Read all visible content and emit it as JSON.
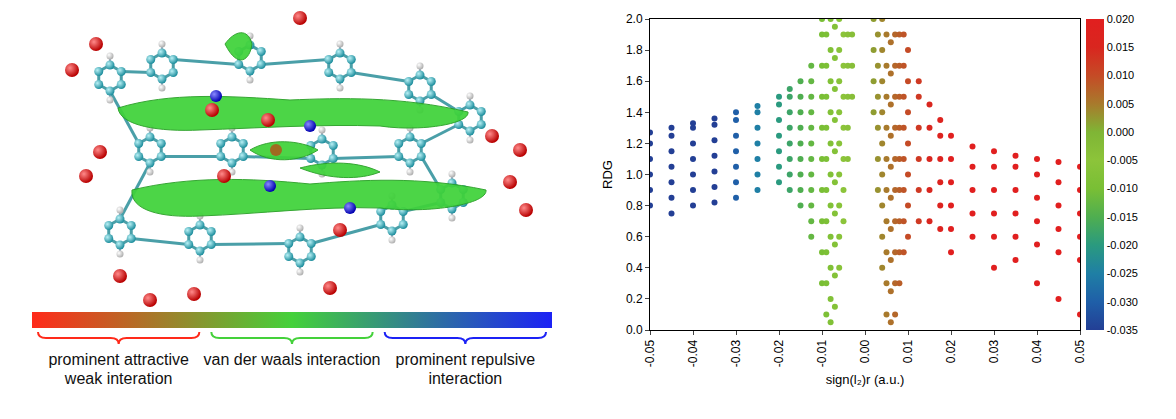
{
  "molecule_panel": {
    "legend": {
      "colors": [
        "#ff2a1a",
        "#44d13a",
        "#1c22f5"
      ],
      "labels": [
        "prominent attractive weak interation",
        "van der waals interaction",
        "prominent repulsive interaction"
      ]
    }
  },
  "chart_data": {
    "type": "scatter",
    "x_label": "sign(l₂)r (a.u.)",
    "y_label": "RDG",
    "xlim": [
      -0.05,
      0.05
    ],
    "xticks": [
      -0.05,
      -0.04,
      -0.03,
      -0.02,
      -0.01,
      {
        "value": 0,
        "label": "0.00"
      },
      0.01,
      0.02,
      0.03,
      0.04,
      0.05
    ],
    "ylim": [
      0,
      2
    ],
    "yticks": [
      {
        "value": 0,
        "label": "0.0"
      },
      0.2,
      0.4,
      0.6,
      0.8,
      {
        "value": 1,
        "label": "1.0"
      },
      1.2,
      1.4,
      1.6,
      1.8,
      {
        "value": 2,
        "label": "2.0"
      }
    ],
    "grid": false,
    "colorbar": {
      "range": [
        -0.035,
        0.02
      ],
      "ticks": [
        {
          "value": 0.02,
          "label": "0.020"
        },
        0.015,
        {
          "value": 0.01,
          "label": "0.010"
        },
        0.005,
        {
          "value": 0,
          "label": "0.000"
        },
        -0.005,
        {
          "value": -0.01,
          "label": "-0.010"
        },
        -0.015,
        {
          "value": -0.02,
          "label": "-0.020"
        },
        -0.025,
        {
          "value": -0.03,
          "label": "-0.030"
        },
        -0.035
      ],
      "colors": [
        "#233f95",
        "#1f5fa8",
        "#1f7fa5",
        "#2a9a7f",
        "#4fae50",
        "#79bf35",
        "#8cc43a",
        "#7fb535",
        "#a87a2c",
        "#c54b26",
        "#d9261f",
        "#e11f1f"
      ]
    },
    "x": [
      -0.05,
      -0.05,
      -0.05,
      -0.05,
      -0.05,
      -0.05,
      -0.045,
      -0.045,
      -0.045,
      -0.045,
      -0.045,
      -0.045,
      -0.045,
      -0.04,
      -0.04,
      -0.04,
      -0.04,
      -0.04,
      -0.04,
      -0.04,
      -0.035,
      -0.035,
      -0.035,
      -0.035,
      -0.035,
      -0.035,
      -0.035,
      -0.03,
      -0.03,
      -0.03,
      -0.03,
      -0.03,
      -0.03,
      -0.03,
      -0.025,
      -0.025,
      -0.025,
      -0.025,
      -0.025,
      -0.025,
      -0.025,
      -0.02,
      -0.02,
      -0.02,
      -0.02,
      -0.02,
      -0.02,
      -0.02,
      -0.0175,
      -0.0175,
      -0.0175,
      -0.0175,
      -0.0175,
      -0.0175,
      -0.0175,
      -0.0175,
      -0.015,
      -0.015,
      -0.015,
      -0.015,
      -0.015,
      -0.015,
      -0.015,
      -0.015,
      -0.015,
      -0.0125,
      -0.0125,
      -0.0125,
      -0.0125,
      -0.0125,
      -0.0125,
      -0.0125,
      -0.0125,
      -0.0125,
      -0.0125,
      -0.0125,
      -0.0125,
      -0.01,
      -0.01,
      -0.01,
      -0.01,
      -0.01,
      -0.01,
      -0.01,
      -0.01,
      -0.01,
      -0.01,
      -0.009,
      -0.009,
      -0.009,
      -0.009,
      -0.009,
      -0.009,
      -0.009,
      -0.009,
      -0.009,
      -0.009,
      -0.008,
      -0.008,
      -0.008,
      -0.008,
      -0.008,
      -0.008,
      -0.008,
      -0.008,
      -0.008,
      -0.008,
      -0.008,
      -0.007,
      -0.007,
      -0.007,
      -0.007,
      -0.007,
      -0.007,
      -0.007,
      -0.007,
      -0.007,
      -0.007,
      -0.006,
      -0.006,
      -0.006,
      -0.006,
      -0.006,
      -0.006,
      -0.006,
      -0.006,
      -0.006,
      -0.005,
      -0.005,
      -0.005,
      -0.005,
      -0.005,
      -0.005,
      -0.005,
      -0.004,
      -0.004,
      -0.004,
      -0.004,
      -0.004,
      -0.003,
      -0.003,
      -0.003,
      0.002,
      0.002,
      0.002,
      0.002,
      0.003,
      0.003,
      0.003,
      0.003,
      0.003,
      0.003,
      0.004,
      0.004,
      0.004,
      0.004,
      0.004,
      0.004,
      0.004,
      0.004,
      0.004,
      0.005,
      0.005,
      0.005,
      0.005,
      0.005,
      0.005,
      0.005,
      0.005,
      0.005,
      0.005,
      0.006,
      0.006,
      0.006,
      0.006,
      0.006,
      0.006,
      0.006,
      0.006,
      0.006,
      0.006,
      0.007,
      0.007,
      0.007,
      0.007,
      0.007,
      0.007,
      0.007,
      0.007,
      0.007,
      0.007,
      0.008,
      0.008,
      0.008,
      0.008,
      0.008,
      0.008,
      0.008,
      0.008,
      0.008,
      0.009,
      0.009,
      0.009,
      0.009,
      0.009,
      0.009,
      0.009,
      0.009,
      0.01,
      0.01,
      0.01,
      0.01,
      0.01,
      0.01,
      0.01,
      0.0125,
      0.0125,
      0.0125,
      0.0125,
      0.0125,
      0.0125,
      0.015,
      0.015,
      0.015,
      0.015,
      0.015,
      0.0175,
      0.0175,
      0.0175,
      0.0175,
      0.0175,
      0.0175,
      0.02,
      0.02,
      0.02,
      0.02,
      0.02,
      0.02,
      0.025,
      0.025,
      0.025,
      0.025,
      0.025,
      0.03,
      0.03,
      0.03,
      0.03,
      0.03,
      0.03,
      0.035,
      0.035,
      0.035,
      0.035,
      0.035,
      0.035,
      0.04,
      0.04,
      0.04,
      0.04,
      0.04,
      0.04,
      0.045,
      0.045,
      0.045,
      0.045,
      0.045,
      0.045,
      0.05,
      0.05,
      0.05,
      0.05,
      0.05,
      0.05
    ],
    "values": [
      0.8,
      0.9,
      1.0,
      1.1,
      1.2,
      1.27,
      0.75,
      0.85,
      0.95,
      1.05,
      1.15,
      1.25,
      1.3,
      0.8,
      0.9,
      1.0,
      1.1,
      1.2,
      1.3,
      1.33,
      0.82,
      0.92,
      1.02,
      1.12,
      1.22,
      1.32,
      1.36,
      0.85,
      0.95,
      1.05,
      1.15,
      1.25,
      1.35,
      1.4,
      0.9,
      1.0,
      1.1,
      1.2,
      1.3,
      1.4,
      1.44,
      0.95,
      1.05,
      1.15,
      1.25,
      1.35,
      1.45,
      1.5,
      0.9,
      1.0,
      1.1,
      1.2,
      1.3,
      1.4,
      1.5,
      1.55,
      0.8,
      0.9,
      1.0,
      1.1,
      1.2,
      1.3,
      1.4,
      1.5,
      1.6,
      0.6,
      0.7,
      0.8,
      0.9,
      1.0,
      1.1,
      1.2,
      1.3,
      1.4,
      1.5,
      1.6,
      1.7,
      0.3,
      0.5,
      0.7,
      0.9,
      1.1,
      1.3,
      1.5,
      1.7,
      1.9,
      2.0,
      0.1,
      0.3,
      0.5,
      0.7,
      0.9,
      1.1,
      1.3,
      1.5,
      1.7,
      1.9,
      0.05,
      0.2,
      0.4,
      0.6,
      0.8,
      1.0,
      1.2,
      1.4,
      1.6,
      1.8,
      2.0,
      0.15,
      0.35,
      0.55,
      0.75,
      0.95,
      1.15,
      1.35,
      1.55,
      1.75,
      1.95,
      0.4,
      0.6,
      0.8,
      1.0,
      1.2,
      1.4,
      1.6,
      1.8,
      2.0,
      0.7,
      0.9,
      1.1,
      1.3,
      1.5,
      1.7,
      1.9,
      1.1,
      1.3,
      1.5,
      1.7,
      1.9,
      1.5,
      1.7,
      1.9,
      1.4,
      1.6,
      1.8,
      2.0,
      0.9,
      1.1,
      1.3,
      1.5,
      1.7,
      1.9,
      0.4,
      0.6,
      0.8,
      1.0,
      1.2,
      1.4,
      1.6,
      1.8,
      2.0,
      0.1,
      0.3,
      0.5,
      0.7,
      0.9,
      1.1,
      1.3,
      1.5,
      1.7,
      1.9,
      0.05,
      0.25,
      0.45,
      0.65,
      0.85,
      1.05,
      1.25,
      1.45,
      1.65,
      1.85,
      0.1,
      0.3,
      0.5,
      0.7,
      0.9,
      1.1,
      1.3,
      1.5,
      1.7,
      1.9,
      0.3,
      0.5,
      0.7,
      0.9,
      1.1,
      1.3,
      1.5,
      1.7,
      1.9,
      0.5,
      0.7,
      0.9,
      1.1,
      1.3,
      1.5,
      1.7,
      1.9,
      0.6,
      0.8,
      1.0,
      1.2,
      1.4,
      1.6,
      1.8,
      0.7,
      0.9,
      1.1,
      1.3,
      1.5,
      1.6,
      0.7,
      0.9,
      1.1,
      1.3,
      1.45,
      0.65,
      0.8,
      0.95,
      1.1,
      1.25,
      1.35,
      0.5,
      0.65,
      0.8,
      0.95,
      1.1,
      1.25,
      0.6,
      0.75,
      0.9,
      1.05,
      1.18,
      0.4,
      0.6,
      0.75,
      0.9,
      1.05,
      1.15,
      0.45,
      0.6,
      0.75,
      0.9,
      1.05,
      1.12,
      0.3,
      0.55,
      0.7,
      0.85,
      1.0,
      1.1,
      0.2,
      0.5,
      0.65,
      0.8,
      0.95,
      1.08,
      0.1,
      0.45,
      0.6,
      0.75,
      0.9,
      1.05
    ]
  }
}
